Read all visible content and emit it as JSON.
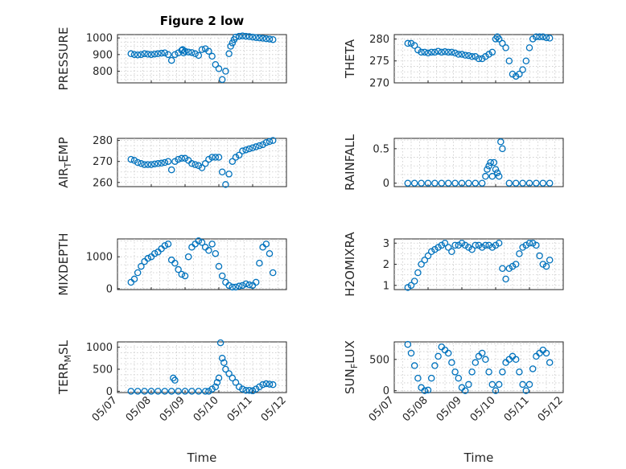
{
  "figure": {
    "title": "Figure 2 low",
    "marker_color": "#0072BD",
    "x_tick_labels": [
      "05/07",
      "05/08",
      "05/09",
      "05/10",
      "05/11",
      "05/12"
    ],
    "x_label": "Time"
  },
  "chart_data": [
    {
      "type": "scatter",
      "title": "Figure 2 low",
      "ylabel": "PRESSURE",
      "xlim": [
        0,
        5
      ],
      "ylim": [
        730,
        1020
      ],
      "yticks": [
        800,
        900,
        1000
      ],
      "grid": true,
      "x": [
        0.4,
        0.5,
        0.6,
        0.7,
        0.8,
        0.9,
        1.0,
        1.1,
        1.2,
        1.3,
        1.4,
        1.5,
        1.6,
        1.7,
        1.8,
        1.9,
        1.93,
        1.96,
        2.0,
        2.1,
        2.2,
        2.3,
        2.4,
        2.5,
        2.6,
        2.7,
        2.8,
        2.9,
        3.0,
        3.1,
        3.2,
        3.3,
        3.35,
        3.4,
        3.45,
        3.5,
        3.6,
        3.7,
        3.8,
        3.9,
        4.0,
        4.1,
        4.2,
        4.3,
        4.4,
        4.5,
        4.6
      ],
      "y": [
        905,
        900,
        898,
        900,
        905,
        902,
        900,
        903,
        905,
        908,
        910,
        900,
        865,
        900,
        910,
        925,
        930,
        910,
        920,
        915,
        912,
        905,
        895,
        930,
        935,
        920,
        890,
        840,
        815,
        750,
        800,
        905,
        950,
        970,
        990,
        1005,
        1010,
        1012,
        1010,
        1008,
        1005,
        1002,
        1000,
        998,
        995,
        993,
        990
      ]
    },
    {
      "type": "scatter",
      "ylabel": "THETA",
      "xlim": [
        0,
        5
      ],
      "ylim": [
        270,
        281
      ],
      "yticks": [
        270,
        275,
        280
      ],
      "grid": true,
      "x": [
        0.4,
        0.5,
        0.6,
        0.7,
        0.8,
        0.9,
        1.0,
        1.1,
        1.2,
        1.3,
        1.4,
        1.5,
        1.6,
        1.7,
        1.8,
        1.9,
        2.0,
        2.1,
        2.2,
        2.3,
        2.4,
        2.5,
        2.6,
        2.7,
        2.8,
        2.9,
        3.0,
        3.05,
        3.1,
        3.2,
        3.3,
        3.4,
        3.5,
        3.6,
        3.7,
        3.8,
        3.9,
        4.0,
        4.1,
        4.2,
        4.3,
        4.4,
        4.5,
        4.6
      ],
      "y": [
        279,
        279,
        278.5,
        277.5,
        277,
        277,
        276.8,
        277,
        277,
        277.2,
        277,
        277.1,
        277,
        277,
        276.8,
        276.5,
        276.5,
        276.3,
        276.2,
        276,
        276,
        275.5,
        275.5,
        276,
        276.5,
        277,
        280,
        280.5,
        280,
        279,
        278,
        275,
        272,
        271.5,
        272,
        273,
        275,
        278,
        280,
        280.5,
        280.5,
        280.5,
        280.3,
        280.2
      ]
    },
    {
      "type": "scatter",
      "ylabel": "AIR_TEMP",
      "xlim": [
        0,
        5
      ],
      "ylim": [
        258,
        281
      ],
      "yticks": [
        260,
        270,
        280
      ],
      "grid": true,
      "x": [
        0.4,
        0.5,
        0.6,
        0.7,
        0.8,
        0.9,
        1.0,
        1.1,
        1.2,
        1.3,
        1.4,
        1.5,
        1.6,
        1.7,
        1.8,
        1.9,
        2.0,
        2.1,
        2.2,
        2.3,
        2.4,
        2.5,
        2.6,
        2.7,
        2.8,
        2.9,
        3.0,
        3.1,
        3.2,
        3.3,
        3.4,
        3.5,
        3.6,
        3.7,
        3.8,
        3.9,
        4.0,
        4.1,
        4.2,
        4.3,
        4.4,
        4.5,
        4.6
      ],
      "y": [
        271,
        270.5,
        269.5,
        269,
        268.5,
        268.5,
        268.5,
        268.8,
        269,
        269.2,
        269.5,
        270,
        266,
        270,
        271,
        271.5,
        271.5,
        270.5,
        269,
        268.5,
        268,
        267,
        269,
        271,
        272,
        272,
        272,
        265,
        259,
        264,
        270,
        272,
        273,
        275,
        275.5,
        276,
        276.5,
        277,
        277.5,
        278,
        279,
        279.5,
        280
      ]
    },
    {
      "type": "scatter",
      "ylabel": "RAINFALL",
      "xlim": [
        0,
        5
      ],
      "ylim": [
        -0.05,
        0.65
      ],
      "yticks": [
        0,
        0.5
      ],
      "ytick_labels": [
        "0",
        "0.5"
      ],
      "grid": true,
      "x": [
        0.4,
        0.6,
        0.8,
        1.0,
        1.2,
        1.4,
        1.6,
        1.8,
        2.0,
        2.2,
        2.4,
        2.6,
        2.7,
        2.75,
        2.8,
        2.85,
        2.9,
        2.95,
        3.0,
        3.05,
        3.1,
        3.15,
        3.2,
        3.4,
        3.6,
        3.8,
        4.0,
        4.2,
        4.4,
        4.6
      ],
      "y": [
        0,
        0,
        0,
        0,
        0,
        0,
        0,
        0,
        0,
        0,
        0,
        0,
        0.1,
        0.2,
        0.25,
        0.3,
        0.1,
        0.3,
        0.2,
        0.15,
        0.1,
        0.6,
        0.5,
        0,
        0,
        0,
        0,
        0,
        0,
        0
      ]
    },
    {
      "type": "scatter",
      "ylabel": "MIXDEPTH",
      "xlim": [
        0,
        5
      ],
      "ylim": [
        -30,
        1560
      ],
      "yticks": [
        0,
        1000
      ],
      "grid": true,
      "x": [
        0.4,
        0.5,
        0.6,
        0.7,
        0.8,
        0.9,
        1.0,
        1.1,
        1.2,
        1.3,
        1.4,
        1.5,
        1.6,
        1.7,
        1.8,
        1.9,
        2.0,
        2.1,
        2.2,
        2.3,
        2.4,
        2.5,
        2.6,
        2.7,
        2.8,
        2.9,
        3.0,
        3.1,
        3.2,
        3.3,
        3.4,
        3.5,
        3.6,
        3.7,
        3.8,
        3.9,
        4.0,
        4.1,
        4.2,
        4.3,
        4.4,
        4.5,
        4.6
      ],
      "y": [
        200,
        300,
        500,
        700,
        850,
        950,
        1000,
        1100,
        1150,
        1250,
        1350,
        1400,
        900,
        800,
        600,
        450,
        400,
        1000,
        1300,
        1400,
        1500,
        1450,
        1300,
        1200,
        1400,
        1100,
        700,
        400,
        200,
        100,
        50,
        50,
        80,
        100,
        150,
        120,
        100,
        200,
        800,
        1300,
        1400,
        1100,
        500
      ]
    },
    {
      "type": "scatter",
      "ylabel": "H2OMIXRA",
      "xlim": [
        0,
        5
      ],
      "ylim": [
        0.8,
        3.2
      ],
      "yticks": [
        1,
        2,
        3
      ],
      "grid": true,
      "x": [
        0.4,
        0.5,
        0.6,
        0.7,
        0.8,
        0.9,
        1.0,
        1.1,
        1.2,
        1.3,
        1.4,
        1.5,
        1.6,
        1.7,
        1.8,
        1.9,
        2.0,
        2.1,
        2.2,
        2.3,
        2.4,
        2.5,
        2.6,
        2.7,
        2.8,
        2.9,
        3.0,
        3.1,
        3.2,
        3.3,
        3.4,
        3.5,
        3.6,
        3.7,
        3.8,
        3.9,
        4.0,
        4.1,
        4.2,
        4.3,
        4.4,
        4.5,
        4.6
      ],
      "y": [
        0.9,
        1.0,
        1.2,
        1.6,
        2.0,
        2.2,
        2.4,
        2.6,
        2.7,
        2.8,
        2.9,
        3.0,
        2.8,
        2.6,
        2.9,
        2.9,
        3.0,
        2.9,
        2.8,
        2.7,
        2.9,
        2.9,
        2.8,
        2.9,
        2.9,
        2.8,
        2.9,
        3.0,
        1.8,
        1.3,
        1.8,
        1.9,
        2.0,
        2.5,
        2.8,
        2.9,
        3.0,
        3.0,
        2.9,
        2.4,
        2.0,
        1.9,
        2.2
      ]
    },
    {
      "type": "scatter",
      "ylabel": "TERR_MSL",
      "xlim": [
        0,
        5
      ],
      "ylim": [
        -30,
        1120
      ],
      "yticks": [
        0,
        500,
        1000
      ],
      "grid": true,
      "x": [
        0.4,
        0.6,
        0.8,
        1.0,
        1.2,
        1.4,
        1.6,
        1.65,
        1.7,
        1.8,
        2.0,
        2.2,
        2.4,
        2.6,
        2.7,
        2.8,
        2.9,
        2.95,
        3.0,
        3.05,
        3.1,
        3.15,
        3.2,
        3.3,
        3.4,
        3.5,
        3.6,
        3.7,
        3.8,
        3.9,
        4.0,
        4.1,
        4.2,
        4.3,
        4.4,
        4.5,
        4.6
      ],
      "y": [
        0,
        0,
        0,
        0,
        0,
        0,
        0,
        300,
        250,
        0,
        0,
        0,
        0,
        0,
        0,
        50,
        100,
        200,
        300,
        1100,
        750,
        650,
        500,
        400,
        300,
        200,
        100,
        50,
        20,
        20,
        10,
        50,
        100,
        150,
        170,
        160,
        150
      ]
    },
    {
      "type": "scatter",
      "ylabel": "SUN_FLUX",
      "xlim": [
        0,
        5
      ],
      "ylim": [
        -30,
        780
      ],
      "yticks": [
        0,
        500
      ],
      "grid": true,
      "x": [
        0.4,
        0.5,
        0.6,
        0.7,
        0.8,
        0.9,
        1.0,
        1.1,
        1.2,
        1.3,
        1.4,
        1.5,
        1.6,
        1.7,
        1.8,
        1.9,
        2.0,
        2.1,
        2.2,
        2.3,
        2.4,
        2.5,
        2.6,
        2.7,
        2.8,
        2.9,
        3.0,
        3.1,
        3.2,
        3.3,
        3.4,
        3.5,
        3.6,
        3.7,
        3.8,
        3.9,
        4.0,
        4.1,
        4.2,
        4.3,
        4.4,
        4.5,
        4.6
      ],
      "y": [
        740,
        600,
        400,
        200,
        50,
        0,
        10,
        200,
        400,
        550,
        700,
        650,
        600,
        450,
        300,
        200,
        50,
        0,
        100,
        300,
        450,
        550,
        600,
        500,
        300,
        100,
        0,
        100,
        300,
        450,
        500,
        550,
        500,
        300,
        100,
        0,
        100,
        350,
        550,
        600,
        650,
        600,
        450
      ]
    }
  ]
}
